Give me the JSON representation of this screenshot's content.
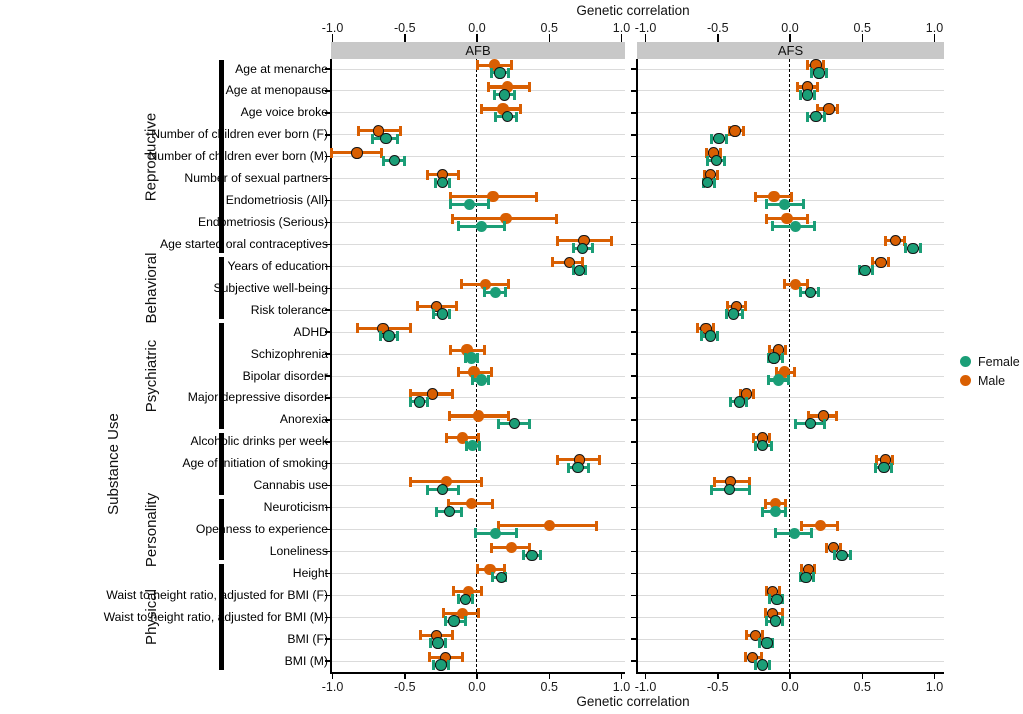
{
  "chart_data": {
    "type": "scatter",
    "variant": "forest-plot-with-error-bars",
    "title_top": "Genetic correlation",
    "title_bottom": "Genetic correlation",
    "panels": [
      {
        "key": "afb",
        "label": "AFB"
      },
      {
        "key": "afs",
        "label": "AFS"
      }
    ],
    "x_ticks": [
      -1.0,
      -0.5,
      0.0,
      0.5,
      1.0
    ],
    "x_tick_labels": [
      "-1.0",
      "-0.5",
      "0.0",
      "0.5",
      "1.0"
    ],
    "xlim": [
      -1.05,
      1.05
    ],
    "zero_dashed_line": true,
    "grid": "horizontal-rows",
    "colors": {
      "female": "#1B9E77",
      "male": "#D95F02",
      "strip_bg": "#C8C8C8",
      "grid": "#DBDBDB",
      "sig_outline": "#141414"
    },
    "legend": {
      "position": "right",
      "entries": [
        {
          "label": "Female",
          "color": "#1B9E77"
        },
        {
          "label": "Male",
          "color": "#D95F02"
        }
      ]
    },
    "groups": [
      {
        "name": "Reproductive",
        "first_row": 0,
        "last_row": 8,
        "label_col": "near"
      },
      {
        "name": "Behavioral",
        "first_row": 9,
        "last_row": 11,
        "label_col": "near"
      },
      {
        "name": "Psychiatric",
        "first_row": 12,
        "last_row": 16,
        "label_col": "near"
      },
      {
        "name": "Substance Use",
        "first_row": 17,
        "last_row": 19,
        "label_col": "far"
      },
      {
        "name": "Personality",
        "first_row": 20,
        "last_row": 22,
        "label_col": "near"
      },
      {
        "name": "Physical",
        "first_row": 23,
        "last_row": 27,
        "label_col": "near"
      }
    ],
    "rows": [
      {
        "label": "Age at menarche",
        "afb": {
          "male": {
            "est": 0.12,
            "lo": 0.0,
            "hi": 0.24,
            "sig": false
          },
          "female": {
            "est": 0.16,
            "lo": 0.1,
            "hi": 0.22,
            "sig": true
          }
        },
        "afs": {
          "male": {
            "est": 0.18,
            "lo": 0.12,
            "hi": 0.23,
            "sig": true
          },
          "female": {
            "est": 0.2,
            "lo": 0.15,
            "hi": 0.25,
            "sig": true
          }
        }
      },
      {
        "label": "Age at menopause",
        "afb": {
          "male": {
            "est": 0.21,
            "lo": 0.08,
            "hi": 0.36,
            "sig": false
          },
          "female": {
            "est": 0.19,
            "lo": 0.12,
            "hi": 0.26,
            "sig": true
          }
        },
        "afs": {
          "male": {
            "est": 0.12,
            "lo": 0.05,
            "hi": 0.19,
            "sig": true
          },
          "female": {
            "est": 0.12,
            "lo": 0.07,
            "hi": 0.17,
            "sig": true
          }
        }
      },
      {
        "label": "Age voice broke",
        "afb": {
          "male": {
            "est": 0.18,
            "lo": 0.03,
            "hi": 0.3,
            "sig": false
          },
          "female": {
            "est": 0.21,
            "lo": 0.13,
            "hi": 0.27,
            "sig": true
          }
        },
        "afs": {
          "male": {
            "est": 0.27,
            "lo": 0.19,
            "hi": 0.33,
            "sig": true
          },
          "female": {
            "est": 0.18,
            "lo": 0.12,
            "hi": 0.24,
            "sig": true
          }
        }
      },
      {
        "label": "Number of children ever born (F)",
        "afb": {
          "male": {
            "est": -0.68,
            "lo": -0.82,
            "hi": -0.53,
            "sig": true
          },
          "female": {
            "est": -0.63,
            "lo": -0.72,
            "hi": -0.55,
            "sig": true
          }
        },
        "afs": {
          "male": {
            "est": -0.38,
            "lo": -0.42,
            "hi": -0.32,
            "sig": true
          },
          "female": {
            "est": -0.49,
            "lo": -0.54,
            "hi": -0.44,
            "sig": true
          }
        }
      },
      {
        "label": "Number of children ever born (M)",
        "afb": {
          "male": {
            "est": -0.83,
            "lo": -1.01,
            "hi": -0.66,
            "sig": true
          },
          "female": {
            "est": -0.57,
            "lo": -0.65,
            "hi": -0.5,
            "sig": true
          }
        },
        "afs": {
          "male": {
            "est": -0.53,
            "lo": -0.58,
            "hi": -0.48,
            "sig": true
          },
          "female": {
            "est": -0.51,
            "lo": -0.57,
            "hi": -0.45,
            "sig": true
          }
        }
      },
      {
        "label": "Number of sexual partners",
        "afb": {
          "male": {
            "est": -0.24,
            "lo": -0.34,
            "hi": -0.13,
            "sig": true
          },
          "female": {
            "est": -0.24,
            "lo": -0.29,
            "hi": -0.19,
            "sig": true
          }
        },
        "afs": {
          "male": {
            "est": -0.55,
            "lo": -0.59,
            "hi": -0.5,
            "sig": true
          },
          "female": {
            "est": -0.57,
            "lo": -0.6,
            "hi": -0.52,
            "sig": true
          }
        }
      },
      {
        "label": "Endometriosis (All)",
        "afb": {
          "male": {
            "est": 0.11,
            "lo": -0.18,
            "hi": 0.41,
            "sig": false
          },
          "female": {
            "est": -0.05,
            "lo": -0.18,
            "hi": 0.08,
            "sig": false
          }
        },
        "afs": {
          "male": {
            "est": -0.11,
            "lo": -0.24,
            "hi": 0.01,
            "sig": false
          },
          "female": {
            "est": -0.04,
            "lo": -0.16,
            "hi": 0.09,
            "sig": false
          }
        }
      },
      {
        "label": "Endometriosis (Serious)",
        "afb": {
          "male": {
            "est": 0.2,
            "lo": -0.17,
            "hi": 0.55,
            "sig": false
          },
          "female": {
            "est": 0.03,
            "lo": -0.13,
            "hi": 0.19,
            "sig": false
          }
        },
        "afs": {
          "male": {
            "est": -0.02,
            "lo": -0.16,
            "hi": 0.12,
            "sig": false
          },
          "female": {
            "est": 0.04,
            "lo": -0.12,
            "hi": 0.17,
            "sig": false
          }
        }
      },
      {
        "label": "Age started oral contraceptives",
        "afb": {
          "male": {
            "est": 0.74,
            "lo": 0.56,
            "hi": 0.93,
            "sig": true
          },
          "female": {
            "est": 0.73,
            "lo": 0.67,
            "hi": 0.8,
            "sig": true
          }
        },
        "afs": {
          "male": {
            "est": 0.73,
            "lo": 0.66,
            "hi": 0.79,
            "sig": true
          },
          "female": {
            "est": 0.85,
            "lo": 0.8,
            "hi": 0.9,
            "sig": true
          }
        }
      },
      {
        "label": "Years of education",
        "afb": {
          "male": {
            "est": 0.64,
            "lo": 0.52,
            "hi": 0.73,
            "sig": true
          },
          "female": {
            "est": 0.71,
            "lo": 0.67,
            "hi": 0.75,
            "sig": true
          }
        },
        "afs": {
          "male": {
            "est": 0.63,
            "lo": 0.57,
            "hi": 0.68,
            "sig": true
          },
          "female": {
            "est": 0.52,
            "lo": 0.48,
            "hi": 0.57,
            "sig": true
          }
        }
      },
      {
        "label": "Subjective well-being",
        "afb": {
          "male": {
            "est": 0.06,
            "lo": -0.11,
            "hi": 0.22,
            "sig": false
          },
          "female": {
            "est": 0.13,
            "lo": 0.05,
            "hi": 0.2,
            "sig": false
          }
        },
        "afs": {
          "male": {
            "est": 0.04,
            "lo": -0.04,
            "hi": 0.12,
            "sig": false
          },
          "female": {
            "est": 0.14,
            "lo": 0.07,
            "hi": 0.2,
            "sig": true
          }
        }
      },
      {
        "label": "Risk tolerance",
        "afb": {
          "male": {
            "est": -0.28,
            "lo": -0.41,
            "hi": -0.14,
            "sig": true
          },
          "female": {
            "est": -0.24,
            "lo": -0.3,
            "hi": -0.19,
            "sig": true
          }
        },
        "afs": {
          "male": {
            "est": -0.37,
            "lo": -0.43,
            "hi": -0.31,
            "sig": true
          },
          "female": {
            "est": -0.39,
            "lo": -0.44,
            "hi": -0.33,
            "sig": true
          }
        }
      },
      {
        "label": "ADHD",
        "afb": {
          "male": {
            "est": -0.65,
            "lo": -0.83,
            "hi": -0.46,
            "sig": true
          },
          "female": {
            "est": -0.61,
            "lo": -0.67,
            "hi": -0.55,
            "sig": true
          }
        },
        "afs": {
          "male": {
            "est": -0.58,
            "lo": -0.64,
            "hi": -0.53,
            "sig": true
          },
          "female": {
            "est": -0.55,
            "lo": -0.61,
            "hi": -0.5,
            "sig": true
          }
        }
      },
      {
        "label": "Schizophrenia",
        "afb": {
          "male": {
            "est": -0.07,
            "lo": -0.18,
            "hi": 0.05,
            "sig": false
          },
          "female": {
            "est": -0.04,
            "lo": -0.08,
            "hi": 0.0,
            "sig": false
          }
        },
        "afs": {
          "male": {
            "est": -0.08,
            "lo": -0.14,
            "hi": -0.03,
            "sig": true
          },
          "female": {
            "est": -0.11,
            "lo": -0.15,
            "hi": -0.05,
            "sig": true
          }
        }
      },
      {
        "label": "Bipolar disorder",
        "afb": {
          "male": {
            "est": -0.02,
            "lo": -0.13,
            "hi": 0.1,
            "sig": false
          },
          "female": {
            "est": 0.03,
            "lo": -0.03,
            "hi": 0.08,
            "sig": false
          }
        },
        "afs": {
          "male": {
            "est": -0.04,
            "lo": -0.09,
            "hi": 0.03,
            "sig": false
          },
          "female": {
            "est": -0.08,
            "lo": -0.15,
            "hi": -0.01,
            "sig": false
          }
        }
      },
      {
        "label": "Major depressive disorder",
        "afb": {
          "male": {
            "est": -0.31,
            "lo": -0.46,
            "hi": -0.17,
            "sig": true
          },
          "female": {
            "est": -0.4,
            "lo": -0.46,
            "hi": -0.34,
            "sig": true
          }
        },
        "afs": {
          "male": {
            "est": -0.3,
            "lo": -0.34,
            "hi": -0.25,
            "sig": true
          },
          "female": {
            "est": -0.35,
            "lo": -0.41,
            "hi": -0.3,
            "sig": true
          }
        }
      },
      {
        "label": "Anorexia",
        "afb": {
          "male": {
            "est": 0.01,
            "lo": -0.19,
            "hi": 0.22,
            "sig": false
          },
          "female": {
            "est": 0.26,
            "lo": 0.15,
            "hi": 0.36,
            "sig": true
          }
        },
        "afs": {
          "male": {
            "est": 0.23,
            "lo": 0.13,
            "hi": 0.32,
            "sig": true
          },
          "female": {
            "est": 0.14,
            "lo": 0.04,
            "hi": 0.24,
            "sig": true
          }
        }
      },
      {
        "label": "Alcoholic drinks per week",
        "afb": {
          "male": {
            "est": -0.1,
            "lo": -0.21,
            "hi": 0.01,
            "sig": false
          },
          "female": {
            "est": -0.03,
            "lo": -0.07,
            "hi": 0.02,
            "sig": false
          }
        },
        "afs": {
          "male": {
            "est": -0.19,
            "lo": -0.25,
            "hi": -0.14,
            "sig": true
          },
          "female": {
            "est": -0.19,
            "lo": -0.24,
            "hi": -0.13,
            "sig": true
          }
        }
      },
      {
        "label": "Age of initiation of smoking",
        "afb": {
          "male": {
            "est": 0.71,
            "lo": 0.56,
            "hi": 0.85,
            "sig": true
          },
          "female": {
            "est": 0.7,
            "lo": 0.63,
            "hi": 0.77,
            "sig": true
          }
        },
        "afs": {
          "male": {
            "est": 0.66,
            "lo": 0.6,
            "hi": 0.71,
            "sig": true
          },
          "female": {
            "est": 0.65,
            "lo": 0.59,
            "hi": 0.7,
            "sig": true
          }
        }
      },
      {
        "label": "Cannabis use",
        "afb": {
          "male": {
            "est": -0.21,
            "lo": -0.46,
            "hi": 0.03,
            "sig": false
          },
          "female": {
            "est": -0.24,
            "lo": -0.34,
            "hi": -0.13,
            "sig": true
          }
        },
        "afs": {
          "male": {
            "est": -0.41,
            "lo": -0.52,
            "hi": -0.28,
            "sig": true
          },
          "female": {
            "est": -0.42,
            "lo": -0.54,
            "hi": -0.28,
            "sig": true
          }
        }
      },
      {
        "label": "Neuroticism",
        "afb": {
          "male": {
            "est": -0.04,
            "lo": -0.2,
            "hi": 0.11,
            "sig": false
          },
          "female": {
            "est": -0.19,
            "lo": -0.28,
            "hi": -0.11,
            "sig": true
          }
        },
        "afs": {
          "male": {
            "est": -0.1,
            "lo": -0.17,
            "hi": -0.03,
            "sig": false
          },
          "female": {
            "est": -0.1,
            "lo": -0.19,
            "hi": -0.03,
            "sig": false
          }
        }
      },
      {
        "label": "Openness to experience",
        "afb": {
          "male": {
            "est": 0.5,
            "lo": 0.15,
            "hi": 0.83,
            "sig": false
          },
          "female": {
            "est": 0.13,
            "lo": -0.01,
            "hi": 0.27,
            "sig": false
          }
        },
        "afs": {
          "male": {
            "est": 0.21,
            "lo": 0.08,
            "hi": 0.33,
            "sig": false
          },
          "female": {
            "est": 0.03,
            "lo": -0.1,
            "hi": 0.15,
            "sig": false
          }
        }
      },
      {
        "label": "Loneliness",
        "afb": {
          "male": {
            "est": 0.24,
            "lo": 0.1,
            "hi": 0.36,
            "sig": false
          },
          "female": {
            "est": 0.38,
            "lo": 0.32,
            "hi": 0.44,
            "sig": true
          }
        },
        "afs": {
          "male": {
            "est": 0.3,
            "lo": 0.25,
            "hi": 0.35,
            "sig": true
          },
          "female": {
            "est": 0.36,
            "lo": 0.31,
            "hi": 0.42,
            "sig": true
          }
        }
      },
      {
        "label": "Height",
        "afb": {
          "male": {
            "est": 0.09,
            "lo": 0.0,
            "hi": 0.19,
            "sig": false
          },
          "female": {
            "est": 0.17,
            "lo": 0.11,
            "hi": 0.2,
            "sig": true
          }
        },
        "afs": {
          "male": {
            "est": 0.13,
            "lo": 0.08,
            "hi": 0.17,
            "sig": true
          },
          "female": {
            "est": 0.11,
            "lo": 0.07,
            "hi": 0.16,
            "sig": true
          }
        }
      },
      {
        "label": "Waist to height ratio, adjusted for BMI (F)",
        "afb": {
          "male": {
            "est": -0.06,
            "lo": -0.16,
            "hi": 0.03,
            "sig": false
          },
          "female": {
            "est": -0.08,
            "lo": -0.13,
            "hi": -0.03,
            "sig": true
          }
        },
        "afs": {
          "male": {
            "est": -0.12,
            "lo": -0.16,
            "hi": -0.07,
            "sig": true
          },
          "female": {
            "est": -0.09,
            "lo": -0.14,
            "hi": -0.05,
            "sig": true
          }
        }
      },
      {
        "label": "Waist to height ratio, adjusted for BMI (M)",
        "afb": {
          "male": {
            "est": -0.1,
            "lo": -0.23,
            "hi": 0.01,
            "sig": false
          },
          "female": {
            "est": -0.16,
            "lo": -0.22,
            "hi": -0.08,
            "sig": true
          }
        },
        "afs": {
          "male": {
            "est": -0.12,
            "lo": -0.17,
            "hi": -0.05,
            "sig": true
          },
          "female": {
            "est": -0.1,
            "lo": -0.16,
            "hi": -0.05,
            "sig": true
          }
        }
      },
      {
        "label": "BMI (F)",
        "afb": {
          "male": {
            "est": -0.28,
            "lo": -0.39,
            "hi": -0.17,
            "sig": true
          },
          "female": {
            "est": -0.27,
            "lo": -0.32,
            "hi": -0.22,
            "sig": true
          }
        },
        "afs": {
          "male": {
            "est": -0.24,
            "lo": -0.3,
            "hi": -0.19,
            "sig": true
          },
          "female": {
            "est": -0.16,
            "lo": -0.21,
            "hi": -0.12,
            "sig": true
          }
        }
      },
      {
        "label": "BMI (M)",
        "afb": {
          "male": {
            "est": -0.22,
            "lo": -0.33,
            "hi": -0.1,
            "sig": true
          },
          "female": {
            "est": -0.25,
            "lo": -0.3,
            "hi": -0.2,
            "sig": true
          }
        },
        "afs": {
          "male": {
            "est": -0.26,
            "lo": -0.31,
            "hi": -0.2,
            "sig": true
          },
          "female": {
            "est": -0.19,
            "lo": -0.24,
            "hi": -0.14,
            "sig": true
          }
        }
      }
    ]
  }
}
